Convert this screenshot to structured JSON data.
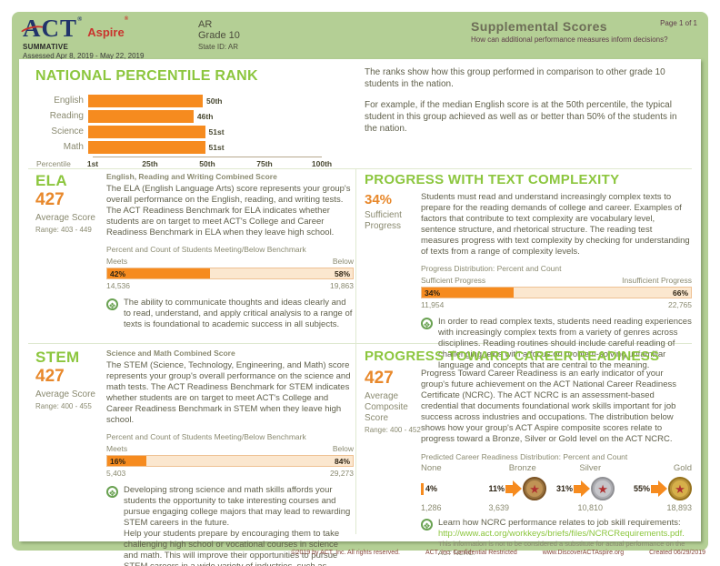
{
  "header": {
    "logo": {
      "act": "ACT",
      "aspire": "Aspire",
      "reg": "®",
      "summative": "SUMMATIVE",
      "assessed": "Assessed Apr 8, 2019 - May 22, 2019"
    },
    "org": "AR",
    "grade": "Grade 10",
    "state_id": "State ID: AR",
    "title": "Supplemental Scores",
    "subtitle": "How can additional performance measures inform decisions?",
    "page": "Page 1 of 1"
  },
  "icons": {
    "note_glyph": "❖",
    "medal_star_glyph": "★"
  },
  "npr": {
    "title": "NATIONAL PERCENTILE RANK",
    "axis_label": "Percentile",
    "ticks": [
      "1st",
      "25th",
      "50th",
      "75th",
      "100th"
    ],
    "bars": [
      {
        "label": "English",
        "value": 50,
        "display": "50th"
      },
      {
        "label": "Reading",
        "value": 46,
        "display": "46th"
      },
      {
        "label": "Science",
        "value": 51,
        "display": "51st"
      },
      {
        "label": "Math",
        "value": 51,
        "display": "51st"
      }
    ],
    "description_1": "The ranks show how this group performed in comparison to other grade 10 students in the nation.",
    "description_2": "For example, if the median English score is at the 50th percentile, the typical student in this group achieved as well as or better than 50% of the students in the nation."
  },
  "ela": {
    "title": "ELA",
    "score": "427",
    "score_label": "Average Score",
    "range": "Range: 403 - 449",
    "subtitle": "English, Reading and Writing Combined Score",
    "body": "The ELA (English Language Arts) score represents your group's overall performance on the English, reading, and writing tests. The ACT Readiness Benchmark for ELA indicates whether students are on target to meet ACT's College and Career Readiness Benchmark in ELA when they leave high school.",
    "bar_header": "Percent and Count of Students Meeting/Below Benchmark",
    "meets_label": "Meets",
    "below_label": "Below",
    "meets_pct": 42,
    "meets_pct_display": "42%",
    "below_pct_display": "58%",
    "meets_count": "14,536",
    "below_count": "19,863",
    "note": "The ability to communicate thoughts and ideas clearly and to read, understand, and apply critical analysis to a range of texts is foundational to academic success in all subjects."
  },
  "text_complexity": {
    "title": "PROGRESS WITH TEXT COMPLEXITY",
    "pct": "34%",
    "pct_label": "Sufficient Progress",
    "body": "Students must read and understand increasingly complex texts to prepare for the reading demands of college and career. Examples of factors that contribute to text complexity are vocabulary level, sentence structure, and rhetorical structure. The reading test measures progress with text complexity by checking for understanding of texts from a range of complexity levels.",
    "bar_header": "Progress Distribution: Percent and Count",
    "left_label": "Sufficient Progress",
    "right_label": "Insufficient Progress",
    "left_pct": 34,
    "left_pct_display": "34%",
    "right_pct_display": "66%",
    "left_count": "11,954",
    "right_count": "22,765",
    "note": "In order to read complex texts, students need reading experiences with increasingly complex texts from a variety of genres across disciplines. Reading routines should include careful reading of challenging texts with a focus on problem-solving unfamiliar language and concepts that are central to the meaning."
  },
  "stem": {
    "title": "STEM",
    "score": "427",
    "score_label": "Average Score",
    "range": "Range: 400 - 455",
    "subtitle": "Science and Math Combined Score",
    "body": "The STEM (Science, Technology, Engineering, and Math) score represents your group's overall performance on the science and math tests. The ACT Readiness Benchmark for STEM indicates whether students are on target to meet ACT's College and Career Readiness Benchmark in STEM when they leave high school.",
    "bar_header": "Percent and Count of Students Meeting/Below Benchmark",
    "meets_label": "Meets",
    "below_label": "Below",
    "meets_pct": 16,
    "meets_pct_display": "16%",
    "below_pct_display": "84%",
    "meets_count": "5,403",
    "below_count": "29,273",
    "note_1": "Developing strong science and math skills affords your students the opportunity to take interesting courses and pursue engaging college majors that may lead to rewarding STEM careers in the future.",
    "note_2": "Help your students prepare by encouraging them to take challenging high school or vocational courses in science and math. This will improve their opportunities to pursue STEM careers in a wide variety of industries, such as Health Care, Engineering, Education, and Technology."
  },
  "career": {
    "title": "PROGRESS TOWARD CAREER READINESS",
    "score": "427",
    "score_label": "Average Composite Score",
    "range": "Range: 400 - 452",
    "body": "Progress Toward Career Readiness is an early indicator of your group's future achievement on the ACT National Career Readiness Certificate (NCRC). The ACT NCRC is an assessment-based credential that documents foundational work skills important for job success across industries and occupations. The distribution below shows how your group's ACT Aspire composite scores relate to progress toward a Bronze, Silver or Gold level on the ACT NCRC.",
    "dist_header": "Predicted Career Readiness Distribution: Percent and Count",
    "levels": [
      {
        "label": "None",
        "pct": "4%",
        "count": "1,286"
      },
      {
        "label": "Bronze",
        "pct": "11%",
        "count": "3,639"
      },
      {
        "label": "Silver",
        "pct": "31%",
        "count": "10,810"
      },
      {
        "label": "Gold",
        "pct": "55%",
        "count": "18,893"
      }
    ],
    "note": "Learn how NCRC performance relates to job skill requirements:",
    "link": "http://www.act.org/workkeys/briefs/files/NCRCRequirements.pdf.",
    "disclaimer": "This information is not to be considered a substitute for actual performance on the ACT NCRC."
  },
  "footer": {
    "copyright": "©2019 by ACT, Inc. All rights reserved.",
    "confidential": "ACT, Inc. Confidential Restricted",
    "website": "www.DiscoverACTAspire.org",
    "created": "Created 06/29/2019"
  },
  "colors": {
    "panel_green": "#b4cf95",
    "accent_green": "#8cc63e",
    "orange": "#f68b1f",
    "score_orange": "#e8882b",
    "body_text": "#5f5f4a",
    "label_olive": "#8a8a70",
    "maroon": "#5d3a4a",
    "act_navy": "#22346b",
    "act_red": "#c9342e"
  },
  "chart_data": [
    {
      "type": "bar",
      "title": "NATIONAL PERCENTILE RANK",
      "categories": [
        "English",
        "Reading",
        "Science",
        "Math"
      ],
      "values": [
        50,
        46,
        51,
        51
      ],
      "value_labels": [
        "50th",
        "46th",
        "51st",
        "51st"
      ],
      "xlabel": "Percentile",
      "ylabel": "",
      "xlim": [
        1,
        100
      ],
      "x_ticks": [
        "1st",
        "25th",
        "50th",
        "75th",
        "100th"
      ],
      "orientation": "horizontal",
      "grid": false,
      "legend_position": "none"
    },
    {
      "type": "bar",
      "title": "ELA: Percent and Count of Students Meeting/Below Benchmark",
      "categories": [
        "Meets",
        "Below"
      ],
      "values": [
        42,
        58
      ],
      "counts": [
        14536,
        19863
      ],
      "orientation": "horizontal-stacked"
    },
    {
      "type": "bar",
      "title": "Progress with Text Complexity: Progress Distribution: Percent and Count",
      "categories": [
        "Sufficient Progress",
        "Insufficient Progress"
      ],
      "values": [
        34,
        66
      ],
      "counts": [
        11954,
        22765
      ],
      "orientation": "horizontal-stacked"
    },
    {
      "type": "bar",
      "title": "STEM: Percent and Count of Students Meeting/Below Benchmark",
      "categories": [
        "Meets",
        "Below"
      ],
      "values": [
        16,
        84
      ],
      "counts": [
        5403,
        29273
      ],
      "orientation": "horizontal-stacked"
    },
    {
      "type": "bar",
      "title": "Predicted Career Readiness Distribution: Percent and Count",
      "categories": [
        "None",
        "Bronze",
        "Silver",
        "Gold"
      ],
      "values": [
        4,
        11,
        31,
        55
      ],
      "counts": [
        1286,
        3639,
        10810,
        18893
      ]
    }
  ]
}
